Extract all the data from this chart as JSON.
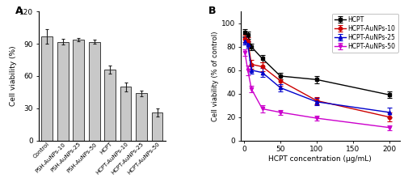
{
  "panel_A": {
    "categories": [
      "Control",
      "PSH-AuNPs-10",
      "PSH-AuNPs-25",
      "PSH-AuNPs-50",
      "HCPT",
      "HCPT-AuNPs-10",
      "HCPT-AuNPs-25",
      "HCPT-AuNPs-50"
    ],
    "values": [
      97,
      92,
      94,
      92,
      66,
      50,
      44,
      26
    ],
    "errors": [
      7,
      2.5,
      1.5,
      2,
      3.5,
      4,
      2.5,
      3.5
    ],
    "bar_color": "#c8c8c8",
    "bar_edge_color": "#222222",
    "ylabel": "Cell viability (%)",
    "ylim": [
      0,
      120
    ],
    "yticks": [
      0,
      30,
      60,
      90,
      120
    ],
    "label": "A"
  },
  "panel_B": {
    "x": [
      1,
      5,
      10,
      25,
      50,
      100,
      200
    ],
    "series": {
      "HCPT": {
        "values": [
          92,
          90,
          80,
          70,
          55,
          52,
          39
        ],
        "errors": [
          3,
          3,
          3,
          3,
          3,
          3,
          3
        ],
        "color": "#000000",
        "marker": "s"
      },
      "HCPT-AuNPs-10": {
        "values": [
          87,
          85,
          65,
          63,
          51,
          34,
          20
        ],
        "errors": [
          3,
          3,
          4,
          4,
          4,
          3,
          4
        ],
        "color": "#cc0000",
        "marker": "o"
      },
      "HCPT-AuNPs-25": {
        "values": [
          85,
          82,
          60,
          58,
          45,
          33,
          24
        ],
        "errors": [
          3,
          3,
          3,
          4,
          3,
          3,
          4
        ],
        "color": "#0000cc",
        "marker": "^"
      },
      "HCPT-AuNPs-50": {
        "values": [
          75,
          60,
          44,
          27,
          24,
          19,
          11
        ],
        "errors": [
          3,
          4,
          3,
          3,
          2,
          2,
          2
        ],
        "color": "#cc00cc",
        "marker": "v"
      }
    },
    "ylabel": "Cell viability (% of control)",
    "xlabel": "HCPT concentration (μg/mL)",
    "ylim": [
      0,
      110
    ],
    "yticks": [
      0,
      20,
      40,
      60,
      80,
      100
    ],
    "xlim": [
      -5,
      215
    ],
    "xticks": [
      0,
      50,
      100,
      150,
      200
    ],
    "label": "B"
  },
  "background_color": "#ffffff"
}
